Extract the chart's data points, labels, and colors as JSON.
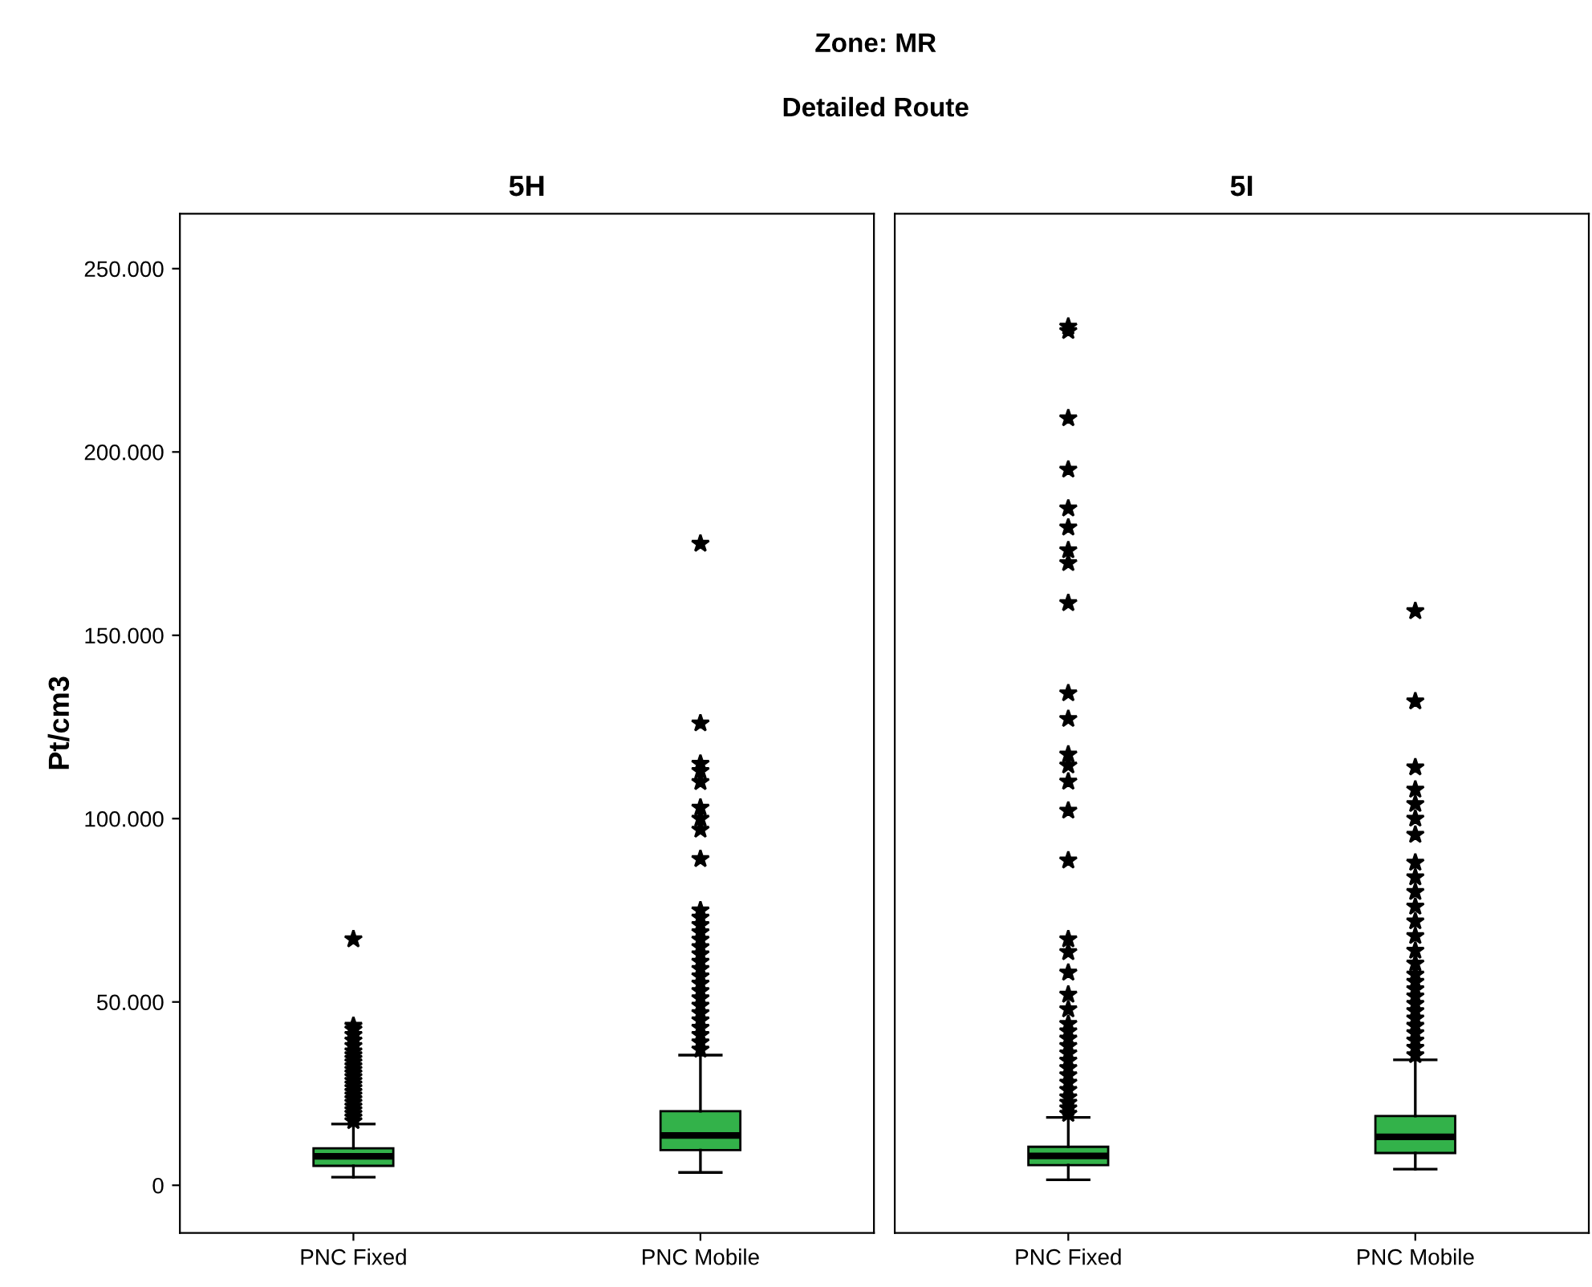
{
  "chart_data": [
    {
      "type": "box",
      "title": "5H",
      "ylabel": "Pt/cm3",
      "annotations": [
        "Zone: MR",
        "Detailed Route"
      ],
      "categories": [
        "PNC Fixed",
        "PNC Mobile"
      ],
      "color": "#33b24a",
      "marker": "star",
      "grid": false,
      "ylim": [
        -13000,
        265000
      ],
      "yticks": [
        {
          "value": 0,
          "label": "0"
        },
        {
          "value": 50000,
          "label": "50.000"
        },
        {
          "value": 100000,
          "label": "100.000"
        },
        {
          "value": 150000,
          "label": "150.000"
        },
        {
          "value": 200000,
          "label": "200.000"
        },
        {
          "value": 250000,
          "label": "250.000"
        }
      ],
      "boxes": [
        {
          "low": 2200,
          "q1": 5300,
          "median": 7900,
          "q3": 10100,
          "high": 16700,
          "outliers": [
            17500,
            18500,
            19500,
            20500,
            21500,
            22500,
            23500,
            24500,
            25500,
            26500,
            27500,
            28500,
            29500,
            30500,
            31500,
            32500,
            33500,
            34500,
            35500,
            36500,
            38000,
            39500,
            41000,
            42500,
            43500,
            67100
          ]
        },
        {
          "low": 3500,
          "q1": 9600,
          "median": 13600,
          "q3": 20200,
          "high": 35500,
          "outliers": [
            37000,
            39000,
            41000,
            43000,
            45000,
            47000,
            49000,
            51000,
            53000,
            55000,
            57000,
            59000,
            61000,
            63000,
            65000,
            67000,
            69000,
            71000,
            73000,
            75000,
            89000,
            97000,
            100000,
            103000,
            110000,
            113000,
            115000,
            126000,
            175000
          ]
        }
      ]
    },
    {
      "type": "box",
      "title": "5I",
      "categories": [
        "PNC Fixed",
        "PNC Mobile"
      ],
      "color": "#33b24a",
      "marker": "star",
      "grid": false,
      "tick_labels": "x",
      "ylim": [
        -13000,
        265000
      ],
      "boxes": [
        {
          "low": 1500,
          "q1": 5500,
          "median": 8000,
          "q3": 10500,
          "high": 18500,
          "outliers": [
            19500,
            21000,
            22500,
            24000,
            26000,
            28000,
            30000,
            32000,
            34000,
            36000,
            38000,
            40000,
            42000,
            44000,
            48000,
            52000,
            58000,
            63600,
            67100,
            88600,
            102200,
            110100,
            114500,
            117500,
            127200,
            134200,
            158800,
            169700,
            173200,
            179400,
            184600,
            195200,
            209200,
            233000,
            234200
          ]
        },
        {
          "low": 4400,
          "q1": 8800,
          "median": 13200,
          "q3": 18900,
          "high": 34200,
          "outliers": [
            35500,
            37500,
            39500,
            41500,
            43500,
            45500,
            47500,
            49500,
            51500,
            53500,
            55500,
            57500,
            60500,
            64000,
            68000,
            72000,
            76000,
            80000,
            84000,
            88000,
            95600,
            100000,
            104000,
            107900,
            114000,
            132000,
            156600
          ]
        }
      ]
    }
  ]
}
